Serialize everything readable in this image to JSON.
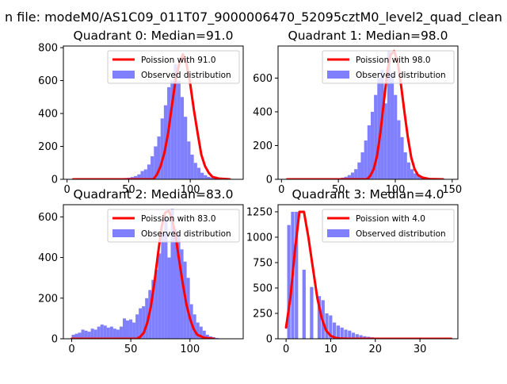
{
  "figure_title": "n file: modeM0/AS1C09_011T07_9000006470_52095cztM0_level2_quad_clean",
  "colors": {
    "hist": "#8080ff",
    "line": "#ff0000",
    "axis": "#000000"
  },
  "chart_data": [
    {
      "type": "bar",
      "title": "Quadrant 0: Median=91.0",
      "xlim": [
        -3,
        143
      ],
      "ylim": [
        0,
        810
      ],
      "xticks": [
        0,
        50,
        100
      ],
      "yticks": [
        0,
        200,
        400,
        600,
        800
      ],
      "legend": {
        "placement": "top-right",
        "entries": [
          "Poission with 91.0",
          "Observed distribution"
        ]
      },
      "histogram": {
        "name": "Observed distribution",
        "bin_start": 3,
        "bin_width": 2.7,
        "counts": [
          2,
          1,
          1,
          1,
          1,
          1,
          1,
          1,
          1,
          1,
          2,
          2,
          2,
          3,
          4,
          5,
          8,
          10,
          14,
          20,
          30,
          50,
          60,
          90,
          140,
          200,
          260,
          370,
          450,
          560,
          600,
          700,
          600,
          500,
          380,
          230,
          150,
          100,
          70,
          40,
          25,
          15,
          10,
          5,
          3,
          2,
          1,
          1,
          1,
          1
        ]
      },
      "series": [
        {
          "name": "Poission with 91.0",
          "x": [
            5,
            70,
            73,
            76,
            79,
            82,
            85,
            88,
            91,
            94,
            97,
            100,
            103,
            106,
            109,
            112,
            115,
            118,
            123,
            132
          ],
          "y": [
            0,
            0,
            30,
            80,
            160,
            280,
            440,
            600,
            700,
            760,
            700,
            580,
            420,
            280,
            150,
            80,
            40,
            15,
            5,
            0
          ]
        }
      ]
    },
    {
      "type": "bar",
      "title": "Quadrant 1: Median=98.0",
      "xlim": [
        -3,
        155
      ],
      "ylim": [
        0,
        790
      ],
      "xticks": [
        0,
        50,
        100,
        150
      ],
      "yticks": [
        0,
        200,
        400,
        600
      ],
      "legend": {
        "placement": "top-right",
        "entries": [
          "Poission with 98.0",
          "Observed distribution"
        ]
      },
      "histogram": {
        "name": "Observed distribution",
        "bin_start": 3,
        "bin_width": 2.9,
        "counts": [
          1,
          1,
          1,
          1,
          1,
          1,
          1,
          1,
          1,
          1,
          1,
          1,
          2,
          2,
          3,
          4,
          6,
          10,
          15,
          25,
          40,
          60,
          100,
          160,
          230,
          320,
          400,
          500,
          600,
          650,
          450,
          760,
          620,
          500,
          350,
          250,
          160,
          100,
          60,
          35,
          20,
          10,
          6,
          3,
          2,
          1,
          1,
          1,
          1,
          1
        ]
      },
      "series": [
        {
          "name": "Poission with 98.0",
          "x": [
            5,
            75,
            78,
            81,
            84,
            87,
            90,
            93,
            96,
            99,
            102,
            105,
            108,
            111,
            114,
            117,
            120,
            124,
            130,
            142
          ],
          "y": [
            0,
            0,
            20,
            60,
            140,
            280,
            460,
            640,
            740,
            760,
            700,
            560,
            400,
            250,
            130,
            60,
            25,
            10,
            2,
            0
          ]
        }
      ]
    },
    {
      "type": "bar",
      "title": "Quadrant 2: Median=83.0",
      "xlim": [
        -7,
        145
      ],
      "ylim": [
        0,
        660
      ],
      "xticks": [
        0,
        50,
        100
      ],
      "yticks": [
        0,
        200,
        400,
        600
      ],
      "legend": {
        "placement": "top-right",
        "entries": [
          "Poission with 83.0",
          "Observed distribution"
        ]
      },
      "histogram": {
        "name": "Observed distribution",
        "bin_start": 0,
        "bin_width": 2.7,
        "counts": [
          20,
          25,
          30,
          45,
          40,
          35,
          50,
          45,
          60,
          70,
          65,
          55,
          60,
          50,
          45,
          60,
          100,
          90,
          95,
          80,
          120,
          150,
          160,
          200,
          240,
          290,
          340,
          420,
          520,
          600,
          400,
          640,
          540,
          520,
          440,
          380,
          300,
          170,
          120,
          80,
          60,
          40,
          20,
          12,
          8,
          4,
          2
        ]
      },
      "series": [
        {
          "name": "Poission with 83.0",
          "x": [
            0,
            55,
            58,
            61,
            64,
            67,
            70,
            73,
            76,
            79,
            82,
            85,
            88,
            91,
            94,
            97,
            100,
            103,
            106,
            112,
            120
          ],
          "y": [
            0,
            0,
            10,
            30,
            80,
            160,
            280,
            420,
            550,
            620,
            630,
            590,
            500,
            380,
            270,
            170,
            100,
            50,
            20,
            5,
            0
          ]
        }
      ]
    },
    {
      "type": "bar",
      "title": "Quadrant 3: Median=4.0",
      "xlim": [
        -1.8,
        38.5
      ],
      "ylim": [
        0,
        1320
      ],
      "xticks": [
        0,
        10,
        20,
        30
      ],
      "yticks": [
        0,
        250,
        500,
        750,
        1000,
        1250
      ],
      "legend": {
        "placement": "top-right",
        "entries": [
          "Poission with 4.0",
          "Observed distribution"
        ]
      },
      "bars": [
        [
          0.25,
          1120
        ],
        [
          1.1,
          1250
        ],
        [
          1.95,
          1250
        ],
        [
          2.8,
          0
        ],
        [
          3.65,
          680
        ],
        [
          4.5,
          0
        ],
        [
          5.35,
          510
        ],
        [
          6.2,
          0
        ],
        [
          7.05,
          420
        ],
        [
          7.9,
          380
        ],
        [
          8.75,
          250
        ],
        [
          9.6,
          230
        ],
        [
          10.45,
          160
        ],
        [
          11.3,
          130
        ],
        [
          12.15,
          110
        ],
        [
          13.0,
          90
        ],
        [
          13.85,
          80
        ],
        [
          14.7,
          60
        ],
        [
          15.55,
          45
        ],
        [
          16.4,
          35
        ],
        [
          17.25,
          25
        ],
        [
          18.1,
          20
        ],
        [
          18.95,
          15
        ],
        [
          19.8,
          10
        ],
        [
          20.65,
          8
        ],
        [
          21.5,
          6
        ],
        [
          22.35,
          5
        ],
        [
          23.2,
          4
        ],
        [
          24.05,
          3
        ],
        [
          24.9,
          2
        ],
        [
          25.75,
          2
        ],
        [
          26.6,
          1
        ],
        [
          27.45,
          1
        ],
        [
          28.3,
          1
        ],
        [
          29.15,
          1
        ],
        [
          30.0,
          1
        ],
        [
          30.85,
          1
        ],
        [
          31.7,
          1
        ],
        [
          32.55,
          1
        ]
      ],
      "bar_width": 0.75,
      "series": [
        {
          "name": "Poission with 4.0",
          "x": [
            0,
            1,
            2,
            3,
            4,
            5,
            6,
            7,
            8,
            9,
            10,
            11,
            12,
            14,
            20,
            37
          ],
          "y": [
            110,
            420,
            880,
            1250,
            1250,
            1000,
            700,
            400,
            200,
            80,
            30,
            10,
            3,
            0,
            0,
            0
          ]
        }
      ]
    }
  ]
}
